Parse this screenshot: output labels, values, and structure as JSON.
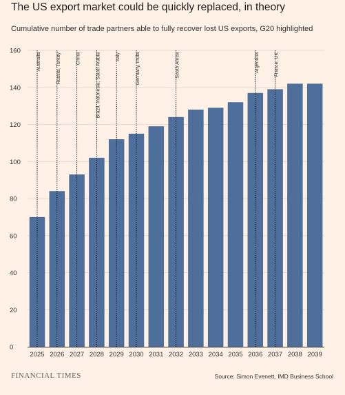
{
  "title": "The US export market could be quickly replaced, in theory",
  "subtitle": "Cumulative number of trade partners able to fully recover lost US exports, G20 highlighted",
  "brand": "FINANCIAL TIMES",
  "source": "Source: Simon Evenett, IMD Business School",
  "colors": {
    "background": "#fff1e5",
    "bar": "#4e6f9b",
    "grid": "#e6d9ce",
    "axis": "#33302e",
    "marker": "#1a1a1a"
  },
  "chart_data": {
    "type": "bar",
    "title": "The US export market could be quickly replaced, in theory",
    "subtitle": "Cumulative number of trade partners able to fully recover lost US exports, G20 highlighted",
    "categories": [
      "2025",
      "2026",
      "2027",
      "2028",
      "2029",
      "2030",
      "2031",
      "2032",
      "2033",
      "2034",
      "2035",
      "2036",
      "2037",
      "2038",
      "2039"
    ],
    "values": [
      70,
      84,
      93,
      102,
      112,
      115,
      119,
      124,
      128,
      129,
      132,
      137,
      139,
      142,
      142
    ],
    "ylim": [
      0,
      160
    ],
    "yticks": [
      0,
      20,
      40,
      60,
      80,
      100,
      120,
      140,
      160
    ],
    "grid": true,
    "annotations": [
      {
        "year": "2025",
        "text": "Australia"
      },
      {
        "year": "2026",
        "text": "Russia, Turkey"
      },
      {
        "year": "2027",
        "text": "China"
      },
      {
        "year": "2028",
        "text": "Brazil, Indonesia, Saudi Arabia"
      },
      {
        "year": "2029",
        "text": "Italy"
      },
      {
        "year": "2030",
        "text": "Germany, India"
      },
      {
        "year": "2032",
        "text": "South Africa"
      },
      {
        "year": "2036",
        "text": "Argentina"
      },
      {
        "year": "2037",
        "text": "France, UK"
      }
    ]
  }
}
